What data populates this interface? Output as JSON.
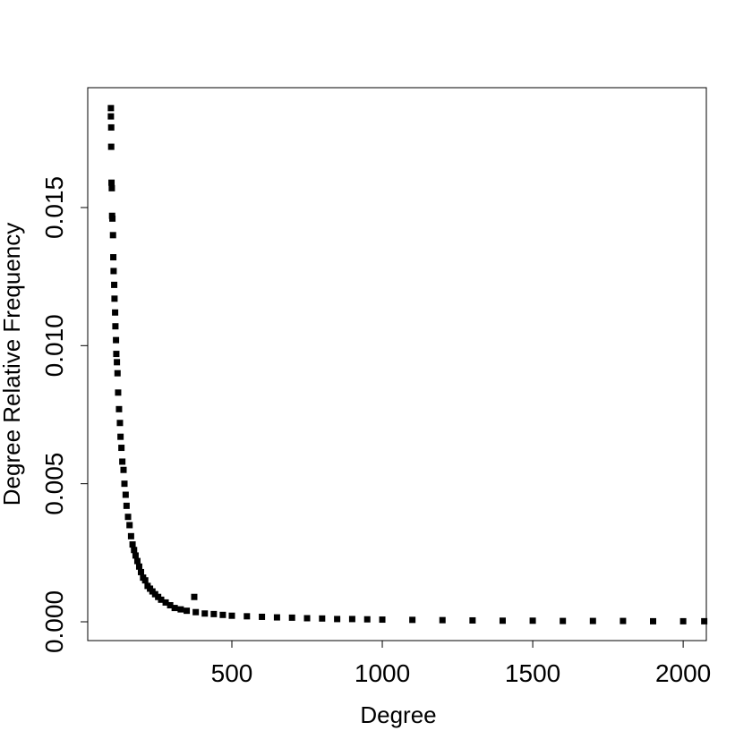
{
  "chart_data": {
    "type": "scatter",
    "xlabel": "Degree",
    "ylabel": "Degree Relative Frequency",
    "color": "#000000",
    "x": [
      98,
      98,
      99,
      99,
      100,
      101,
      102,
      103,
      105,
      106,
      107,
      109,
      110,
      112,
      113,
      115,
      116,
      118,
      120,
      122,
      125,
      128,
      130,
      133,
      136,
      140,
      143,
      147,
      150,
      155,
      160,
      165,
      170,
      175,
      180,
      186,
      192,
      198,
      205,
      212,
      220,
      228,
      236,
      245,
      255,
      265,
      280,
      295,
      310,
      330,
      350,
      375,
      380,
      410,
      440,
      470,
      500,
      550,
      600,
      650,
      700,
      750,
      800,
      850,
      900,
      950,
      1000,
      1100,
      1200,
      1300,
      1400,
      1500,
      1600,
      1700,
      1800,
      1900,
      2000,
      2070
    ],
    "values": [
      0.0186,
      0.0183,
      0.0179,
      0.0172,
      0.0159,
      0.0157,
      0.0147,
      0.0146,
      0.014,
      0.0132,
      0.0127,
      0.0122,
      0.0117,
      0.0112,
      0.0107,
      0.0102,
      0.0097,
      0.0094,
      0.009,
      0.0083,
      0.0077,
      0.0072,
      0.0067,
      0.0063,
      0.0058,
      0.0055,
      0.005,
      0.0046,
      0.0042,
      0.0038,
      0.0035,
      0.0031,
      0.0028,
      0.0026,
      0.0024,
      0.0022,
      0.002,
      0.0018,
      0.0016,
      0.0015,
      0.0013,
      0.0012,
      0.0011,
      0.001,
      0.0009,
      0.0008,
      0.0007,
      0.0006,
      0.0005,
      0.00045,
      0.0004,
      0.0009,
      0.00035,
      0.0003,
      0.00028,
      0.00025,
      0.00022,
      0.0002,
      0.00018,
      0.00016,
      0.00015,
      0.00013,
      0.00012,
      0.0001,
      0.0001,
      9e-05,
      8e-05,
      7e-05,
      6e-05,
      5e-05,
      4e-05,
      4e-05,
      3e-05,
      3e-05,
      3e-05,
      2e-05,
      2e-05,
      2e-05
    ],
    "xlim": [
      21,
      2077
    ],
    "ylim": [
      -0.00068,
      0.01934
    ],
    "xticks": [
      500,
      1000,
      1500,
      2000
    ],
    "yticks": [
      {
        "value": 0,
        "label": "0.000"
      },
      {
        "value": 0.005,
        "label": "0.005"
      },
      {
        "value": 0.01,
        "label": "0.010"
      },
      {
        "value": 0.015,
        "label": "0.015"
      }
    ]
  }
}
